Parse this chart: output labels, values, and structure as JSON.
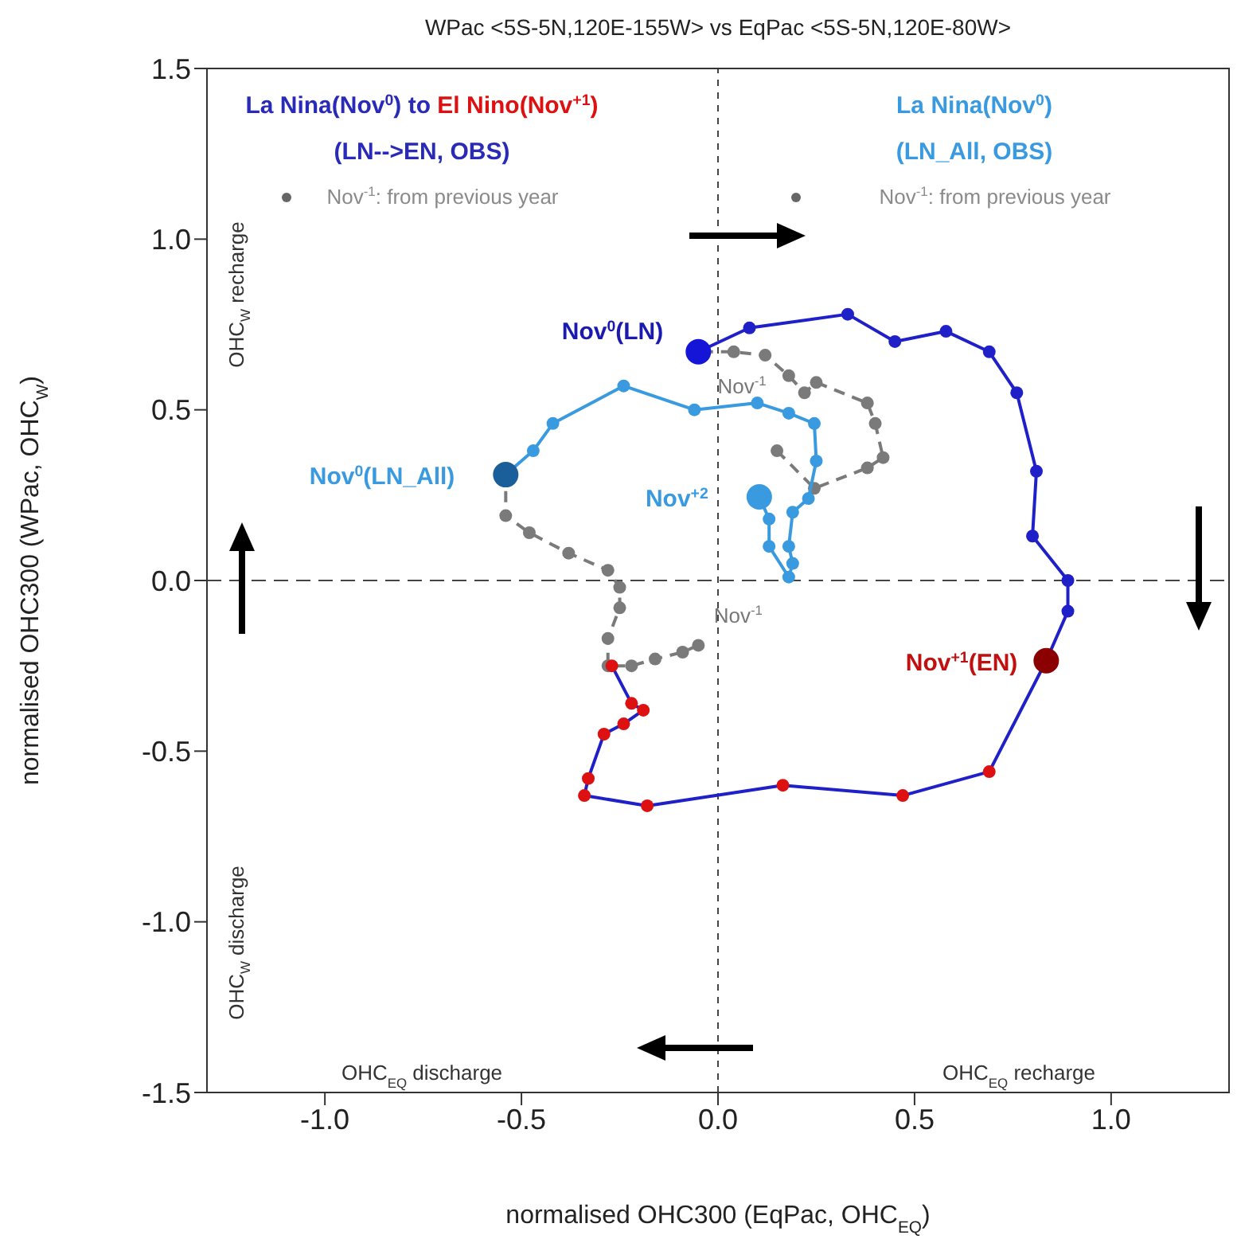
{
  "chart_data": {
    "type": "line",
    "title": "WPac <5S-5N,120E-155W> vs EqPac <5S-5N,120E-80W>",
    "xlabel": "normalised OHC300 (EqPac, OHC$_{EQ}$)",
    "ylabel": "normalised OHC300 (WPac, OHC$_{W}$)",
    "xlim": [
      -1.3,
      1.3
    ],
    "xticks": [
      {
        "value": -1,
        "label": "-1.0"
      },
      -0.5,
      {
        "value": 0,
        "label": "0.0"
      },
      0.5,
      {
        "value": 1,
        "label": "1.0"
      }
    ],
    "ylim": [
      -1.5,
      1.5
    ],
    "yticks": [
      -1.5,
      {
        "value": -1,
        "label": "-1.0"
      },
      -0.5,
      {
        "value": 0,
        "label": "0.0"
      },
      0.5,
      {
        "value": 1,
        "label": "1.0"
      },
      1.5
    ],
    "marker": "circle",
    "ref_lines": [
      {
        "axis": "x",
        "value": 0,
        "color": "#444444",
        "line_style": "dotted"
      },
      {
        "axis": "y",
        "value": 0,
        "color": "#444444",
        "line_style": "dashed"
      }
    ],
    "series": [
      {
        "color": "#7a7a7a",
        "line_style": "dashed",
        "x": [
          0.15,
          0.245,
          0.38,
          0.42,
          0.4,
          0.38,
          0.25,
          0.22,
          0.18,
          0.12,
          0.04,
          -0.05
        ],
        "values": [
          0.38,
          0.27,
          0.33,
          0.36,
          0.46,
          0.52,
          0.58,
          0.55,
          0.6,
          0.66,
          0.67,
          0.67
        ]
      },
      {
        "color": "#7a7a7a",
        "line_style": "dashed",
        "x": [
          -0.05,
          -0.09,
          -0.16,
          -0.22,
          -0.28,
          -0.28,
          -0.25,
          -0.25,
          -0.28,
          -0.38,
          -0.48,
          -0.54,
          -0.54
        ],
        "values": [
          -0.19,
          -0.21,
          -0.23,
          -0.25,
          -0.25,
          -0.17,
          -0.08,
          -0.02,
          0.03,
          0.08,
          0.14,
          0.19,
          0.31
        ]
      },
      {
        "color": "#3a9ae0",
        "line_style": "solid",
        "x": [
          -0.54,
          -0.47,
          -0.42,
          -0.24,
          -0.06,
          0.1,
          0.18,
          0.245,
          0.25,
          0.23,
          0.19,
          0.18,
          0.19,
          0.18,
          0.13,
          0.13,
          0.105
        ],
        "values": [
          0.31,
          0.38,
          0.46,
          0.57,
          0.5,
          0.52,
          0.49,
          0.46,
          0.35,
          0.24,
          0.2,
          0.1,
          0.05,
          0.01,
          0.1,
          0.18,
          0.245
        ]
      },
      {
        "color": "#2020c8",
        "line_style": "solid",
        "x": [
          -0.05,
          0.08,
          0.33,
          0.45,
          0.58,
          0.69,
          0.76,
          0.81,
          0.8,
          0.89,
          0.89,
          0.835,
          0.69,
          0.47,
          0.165,
          -0.18,
          -0.34,
          -0.33,
          -0.29,
          -0.24,
          -0.19,
          -0.22,
          -0.27
        ],
        "values": [
          0.67,
          0.74,
          0.78,
          0.7,
          0.73,
          0.67,
          0.55,
          0.32,
          0.13,
          0.0,
          -0.09,
          -0.235,
          -0.56,
          -0.63,
          -0.6,
          -0.66,
          -0.63,
          -0.58,
          -0.45,
          -0.42,
          -0.38,
          -0.36,
          -0.25
        ],
        "colors": [
          "#2020c8",
          "#2020c8",
          "#2020c8",
          "#2020c8",
          "#2020c8",
          "#2020c8",
          "#2020c8",
          "#2020c8",
          "#2020c8",
          "#2020c8",
          "#2020c8",
          "#dd1111",
          "#dd1111",
          "#dd1111",
          "#dd1111",
          "#dd1111",
          "#dd1111",
          "#dd1111",
          "#dd1111",
          "#dd1111",
          "#dd1111",
          "#dd1111",
          "#dd1111"
        ]
      },
      {
        "type": "scatter",
        "color": "#1515d8",
        "x": [
          -0.05
        ],
        "values": [
          0.67
        ]
      },
      {
        "type": "scatter",
        "color": "#1a5f9a",
        "x": [
          -0.54
        ],
        "values": [
          0.31
        ]
      },
      {
        "type": "scatter",
        "color": "#3a9ae0",
        "x": [
          0.105
        ],
        "values": [
          0.245
        ]
      },
      {
        "type": "scatter",
        "color": "#8b0000",
        "x": [
          0.835
        ],
        "values": [
          -0.235
        ]
      }
    ],
    "annotations": [
      "La Nina(Nov$^{0}$) to",
      "El Nino(Nov$^{+1}$)",
      "(LN-->EN, OBS)",
      "Nov$^{-1}$: from previous year",
      "La Nina(Nov$^{0}$)",
      "(LN_All, OBS)",
      "Nov$^{-1}$: from previous year",
      "OHC$_{W}$ recharge",
      "OHC$_{W}$ discharge",
      "OHC$_{EQ}$ discharge",
      "OHC$_{EQ}$ recharge",
      {
        "text": "Nov$^{0}$(LN)",
        "x": -0.05,
        "y": 0.67
      },
      {
        "text": "Nov$^{0}$(LN_All)",
        "x": -0.54,
        "y": 0.31
      },
      {
        "text": "Nov$^{+2}$",
        "x": 0.105,
        "y": 0.245
      },
      {
        "text": "Nov$^{+1}$(EN)",
        "x": 0.835,
        "y": -0.235
      },
      {
        "text": "Nov$^{-1}$",
        "x": 0.15,
        "y": 0.38
      },
      {
        "text": "Nov$^{-1}$",
        "x": -0.05,
        "y": -0.19
      }
    ]
  }
}
